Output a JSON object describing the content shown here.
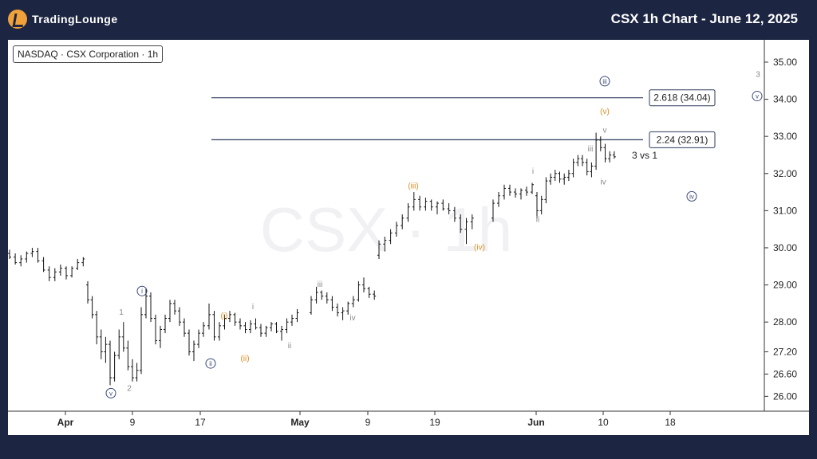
{
  "header": {
    "logo_text": "TradingLounge",
    "title": "CSX 1h Chart - June 12, 2025",
    "brand_color": "#1c2541",
    "logo_color": "#f0a13a"
  },
  "ticker_label": "NASDAQ · CSX Corporation · 1h",
  "watermark": "CSX · 1h",
  "chart_data": {
    "type": "bar",
    "subtype": "ohlc",
    "ylim": [
      25.6,
      35.6
    ],
    "y_ticks": [
      26.0,
      26.6,
      27.2,
      28.0,
      29.0,
      30.0,
      31.0,
      32.0,
      33.0,
      34.0,
      35.0
    ],
    "x_tick_labels": [
      "Apr",
      "9",
      "17",
      "May",
      "9",
      "19",
      "Jun",
      "10",
      "18"
    ],
    "grid": false,
    "fib_levels": [
      {
        "label": "2.618 (34.04)",
        "value": 34.04
      },
      {
        "label": "2.24 (32.91)",
        "value": 32.91
      }
    ],
    "annotation": "3 vs 1",
    "wave_labels": [
      {
        "text": "1",
        "color": "gray",
        "circled": false,
        "price": 28.2
      },
      {
        "text": "2",
        "color": "gray",
        "circled": false,
        "price": 26.15
      },
      {
        "text": "3",
        "color": "gray",
        "circled": false,
        "price": 34.6
      },
      {
        "text": "i",
        "color": "navy",
        "circled": true,
        "price": 28.75
      },
      {
        "text": "v",
        "color": "navy",
        "circled": true,
        "price": 26.0
      },
      {
        "text": "ii",
        "color": "navy",
        "circled": true,
        "price": 26.8
      },
      {
        "text": "iii",
        "color": "navy",
        "circled": true,
        "price": 34.4
      },
      {
        "text": "iv",
        "color": "navy",
        "circled": true,
        "price": 31.3
      },
      {
        "text": "v",
        "color": "navy",
        "circled": true,
        "price": 34.0
      },
      {
        "text": "(i)",
        "color": "orange",
        "circled": false,
        "price": 28.1
      },
      {
        "text": "(ii)",
        "color": "orange",
        "circled": false,
        "price": 26.95
      },
      {
        "text": "(iii)",
        "color": "orange",
        "circled": false,
        "price": 31.6
      },
      {
        "text": "(iv)",
        "color": "orange",
        "circled": false,
        "price": 29.95
      },
      {
        "text": "(v)",
        "color": "orange",
        "circled": false,
        "price": 33.6
      },
      {
        "text": "i",
        "color": "gray",
        "circled": false,
        "price": 28.35
      },
      {
        "text": "ii",
        "color": "gray",
        "circled": false,
        "price": 27.3
      },
      {
        "text": "iii",
        "color": "gray",
        "circled": false,
        "price": 28.95
      },
      {
        "text": "iv",
        "color": "gray",
        "circled": false,
        "price": 28.05
      },
      {
        "text": "i",
        "color": "gray",
        "circled": false,
        "price": 32.0
      },
      {
        "text": "ii",
        "color": "gray",
        "circled": false,
        "price": 30.7
      },
      {
        "text": "iii",
        "color": "gray",
        "circled": false,
        "price": 32.6
      },
      {
        "text": "iv",
        "color": "gray",
        "circled": false,
        "price": 31.7
      },
      {
        "text": "v",
        "color": "gray",
        "circled": false,
        "price": 33.1
      }
    ],
    "bars": [
      {
        "o": 29.85,
        "h": 29.95,
        "l": 29.7,
        "c": 29.75
      },
      {
        "o": 29.75,
        "h": 29.85,
        "l": 29.55,
        "c": 29.6
      },
      {
        "o": 29.6,
        "h": 29.8,
        "l": 29.5,
        "c": 29.7
      },
      {
        "o": 29.7,
        "h": 29.9,
        "l": 29.6,
        "c": 29.85
      },
      {
        "o": 29.85,
        "h": 30.0,
        "l": 29.75,
        "c": 29.9
      },
      {
        "o": 29.9,
        "h": 30.0,
        "l": 29.6,
        "c": 29.65
      },
      {
        "o": 29.65,
        "h": 29.75,
        "l": 29.35,
        "c": 29.4
      },
      {
        "o": 29.4,
        "h": 29.5,
        "l": 29.1,
        "c": 29.2
      },
      {
        "o": 29.2,
        "h": 29.45,
        "l": 29.1,
        "c": 29.35
      },
      {
        "o": 29.35,
        "h": 29.55,
        "l": 29.25,
        "c": 29.45
      },
      {
        "o": 29.45,
        "h": 29.5,
        "l": 29.15,
        "c": 29.25
      },
      {
        "o": 29.25,
        "h": 29.5,
        "l": 29.2,
        "c": 29.45
      },
      {
        "o": 29.45,
        "h": 29.7,
        "l": 29.4,
        "c": 29.6
      },
      {
        "o": 29.6,
        "h": 29.75,
        "l": 29.5,
        "c": 29.7
      },
      {
        "o": 29.0,
        "h": 29.1,
        "l": 28.5,
        "c": 28.6
      },
      {
        "o": 28.6,
        "h": 28.7,
        "l": 28.1,
        "c": 28.2
      },
      {
        "o": 28.2,
        "h": 28.3,
        "l": 27.4,
        "c": 27.6
      },
      {
        "o": 27.6,
        "h": 27.8,
        "l": 27.0,
        "c": 27.2
      },
      {
        "o": 27.2,
        "h": 27.6,
        "l": 26.9,
        "c": 27.4
      },
      {
        "o": 27.4,
        "h": 27.5,
        "l": 26.3,
        "c": 26.5
      },
      {
        "o": 26.5,
        "h": 27.2,
        "l": 26.4,
        "c": 27.1
      },
      {
        "o": 27.1,
        "h": 27.8,
        "l": 27.0,
        "c": 27.6
      },
      {
        "o": 27.6,
        "h": 28.0,
        "l": 27.2,
        "c": 27.3
      },
      {
        "o": 27.3,
        "h": 27.5,
        "l": 26.7,
        "c": 26.8
      },
      {
        "o": 26.8,
        "h": 27.0,
        "l": 26.4,
        "c": 26.5
      },
      {
        "o": 26.5,
        "h": 26.9,
        "l": 26.4,
        "c": 26.7
      },
      {
        "o": 26.7,
        "h": 28.4,
        "l": 26.6,
        "c": 28.2
      },
      {
        "o": 28.2,
        "h": 28.9,
        "l": 28.1,
        "c": 28.7
      },
      {
        "o": 28.7,
        "h": 28.8,
        "l": 28.0,
        "c": 28.1
      },
      {
        "o": 28.1,
        "h": 28.2,
        "l": 27.4,
        "c": 27.5
      },
      {
        "o": 27.5,
        "h": 27.9,
        "l": 27.3,
        "c": 27.8
      },
      {
        "o": 27.8,
        "h": 28.2,
        "l": 27.7,
        "c": 28.1
      },
      {
        "o": 28.1,
        "h": 28.6,
        "l": 28.0,
        "c": 28.5
      },
      {
        "o": 28.5,
        "h": 28.6,
        "l": 28.2,
        "c": 28.3
      },
      {
        "o": 28.3,
        "h": 28.4,
        "l": 27.9,
        "c": 28.0
      },
      {
        "o": 28.0,
        "h": 28.1,
        "l": 27.6,
        "c": 27.7
      },
      {
        "o": 27.7,
        "h": 27.8,
        "l": 27.1,
        "c": 27.2
      },
      {
        "o": 27.2,
        "h": 27.5,
        "l": 26.95,
        "c": 27.4
      },
      {
        "o": 27.4,
        "h": 27.8,
        "l": 27.3,
        "c": 27.7
      },
      {
        "o": 27.7,
        "h": 28.0,
        "l": 27.6,
        "c": 27.9
      },
      {
        "o": 27.9,
        "h": 28.5,
        "l": 27.8,
        "c": 28.2
      },
      {
        "o": 28.2,
        "h": 28.3,
        "l": 27.5,
        "c": 27.6
      },
      {
        "o": 27.6,
        "h": 28.0,
        "l": 27.5,
        "c": 27.9
      },
      {
        "o": 27.9,
        "h": 28.2,
        "l": 27.8,
        "c": 28.1
      },
      {
        "o": 28.1,
        "h": 28.3,
        "l": 28.0,
        "c": 28.2
      },
      {
        "o": 28.2,
        "h": 28.25,
        "l": 27.9,
        "c": 28.0
      },
      {
        "o": 28.0,
        "h": 28.1,
        "l": 27.8,
        "c": 27.9
      },
      {
        "o": 27.9,
        "h": 28.0,
        "l": 27.7,
        "c": 27.8
      },
      {
        "o": 27.8,
        "h": 28.05,
        "l": 27.7,
        "c": 27.95
      },
      {
        "o": 27.95,
        "h": 28.1,
        "l": 27.8,
        "c": 27.85
      },
      {
        "o": 27.85,
        "h": 27.95,
        "l": 27.6,
        "c": 27.7
      },
      {
        "o": 27.7,
        "h": 27.9,
        "l": 27.6,
        "c": 27.85
      },
      {
        "o": 27.85,
        "h": 28.0,
        "l": 27.75,
        "c": 27.95
      },
      {
        "o": 27.95,
        "h": 28.0,
        "l": 27.7,
        "c": 27.75
      },
      {
        "o": 27.75,
        "h": 27.9,
        "l": 27.5,
        "c": 27.8
      },
      {
        "o": 27.8,
        "h": 28.1,
        "l": 27.7,
        "c": 28.0
      },
      {
        "o": 28.0,
        "h": 28.2,
        "l": 27.9,
        "c": 28.1
      },
      {
        "o": 28.1,
        "h": 28.35,
        "l": 28.0,
        "c": 28.25
      },
      {
        "o": 28.25,
        "h": 28.7,
        "l": 28.2,
        "c": 28.6
      },
      {
        "o": 28.6,
        "h": 28.95,
        "l": 28.5,
        "c": 28.8
      },
      {
        "o": 28.8,
        "h": 28.85,
        "l": 28.6,
        "c": 28.7
      },
      {
        "o": 28.7,
        "h": 28.8,
        "l": 28.5,
        "c": 28.6
      },
      {
        "o": 28.6,
        "h": 28.7,
        "l": 28.3,
        "c": 28.4
      },
      {
        "o": 28.4,
        "h": 28.5,
        "l": 28.15,
        "c": 28.25
      },
      {
        "o": 28.25,
        "h": 28.4,
        "l": 28.05,
        "c": 28.3
      },
      {
        "o": 28.3,
        "h": 28.55,
        "l": 28.2,
        "c": 28.5
      },
      {
        "o": 28.5,
        "h": 28.7,
        "l": 28.4,
        "c": 28.6
      },
      {
        "o": 28.6,
        "h": 29.1,
        "l": 28.55,
        "c": 29.0
      },
      {
        "o": 29.0,
        "h": 29.2,
        "l": 28.8,
        "c": 28.9
      },
      {
        "o": 28.9,
        "h": 28.95,
        "l": 28.65,
        "c": 28.75
      },
      {
        "o": 28.75,
        "h": 28.85,
        "l": 28.6,
        "c": 28.7
      },
      {
        "o": 29.8,
        "h": 30.2,
        "l": 29.7,
        "c": 30.1
      },
      {
        "o": 30.1,
        "h": 30.3,
        "l": 29.9,
        "c": 30.2
      },
      {
        "o": 30.2,
        "h": 30.5,
        "l": 30.1,
        "c": 30.4
      },
      {
        "o": 30.4,
        "h": 30.7,
        "l": 30.3,
        "c": 30.6
      },
      {
        "o": 30.6,
        "h": 30.9,
        "l": 30.5,
        "c": 30.8
      },
      {
        "o": 30.8,
        "h": 31.2,
        "l": 30.7,
        "c": 31.1
      },
      {
        "o": 31.1,
        "h": 31.5,
        "l": 31.0,
        "c": 31.3
      },
      {
        "o": 31.3,
        "h": 31.4,
        "l": 31.0,
        "c": 31.1
      },
      {
        "o": 31.1,
        "h": 31.35,
        "l": 31.0,
        "c": 31.25
      },
      {
        "o": 31.25,
        "h": 31.3,
        "l": 31.0,
        "c": 31.1
      },
      {
        "o": 31.1,
        "h": 31.25,
        "l": 30.9,
        "c": 31.2
      },
      {
        "o": 31.2,
        "h": 31.3,
        "l": 31.0,
        "c": 31.05
      },
      {
        "o": 31.05,
        "h": 31.2,
        "l": 30.9,
        "c": 31.0
      },
      {
        "o": 31.0,
        "h": 31.1,
        "l": 30.7,
        "c": 30.8
      },
      {
        "o": 30.8,
        "h": 30.9,
        "l": 30.4,
        "c": 30.5
      },
      {
        "o": 30.5,
        "h": 30.8,
        "l": 30.1,
        "c": 30.7
      },
      {
        "o": 30.7,
        "h": 30.9,
        "l": 30.5,
        "c": 30.8
      },
      {
        "o": 30.8,
        "h": 31.3,
        "l": 30.7,
        "c": 31.2
      },
      {
        "o": 31.2,
        "h": 31.5,
        "l": 31.1,
        "c": 31.4
      },
      {
        "o": 31.4,
        "h": 31.7,
        "l": 31.3,
        "c": 31.6
      },
      {
        "o": 31.6,
        "h": 31.7,
        "l": 31.4,
        "c": 31.5
      },
      {
        "o": 31.5,
        "h": 31.6,
        "l": 31.35,
        "c": 31.45
      },
      {
        "o": 31.45,
        "h": 31.6,
        "l": 31.3,
        "c": 31.55
      },
      {
        "o": 31.55,
        "h": 31.65,
        "l": 31.4,
        "c": 31.5
      },
      {
        "o": 31.5,
        "h": 31.75,
        "l": 31.45,
        "c": 31.7
      },
      {
        "o": 31.4,
        "h": 31.5,
        "l": 30.8,
        "c": 31.0
      },
      {
        "o": 31.0,
        "h": 31.4,
        "l": 30.9,
        "c": 31.3
      },
      {
        "o": 31.3,
        "h": 31.9,
        "l": 31.2,
        "c": 31.8
      },
      {
        "o": 31.8,
        "h": 32.0,
        "l": 31.7,
        "c": 31.9
      },
      {
        "o": 31.9,
        "h": 32.1,
        "l": 31.8,
        "c": 32.0
      },
      {
        "o": 32.0,
        "h": 32.05,
        "l": 31.75,
        "c": 31.85
      },
      {
        "o": 31.85,
        "h": 32.0,
        "l": 31.7,
        "c": 31.9
      },
      {
        "o": 31.9,
        "h": 32.1,
        "l": 31.8,
        "c": 32.0
      },
      {
        "o": 32.0,
        "h": 32.4,
        "l": 31.9,
        "c": 32.3
      },
      {
        "o": 32.3,
        "h": 32.5,
        "l": 32.2,
        "c": 32.4
      },
      {
        "o": 32.4,
        "h": 32.5,
        "l": 32.2,
        "c": 32.3
      },
      {
        "o": 32.3,
        "h": 32.4,
        "l": 31.95,
        "c": 32.05
      },
      {
        "o": 32.05,
        "h": 32.3,
        "l": 31.9,
        "c": 32.2
      },
      {
        "o": 32.2,
        "h": 33.1,
        "l": 32.1,
        "c": 32.9
      },
      {
        "o": 32.9,
        "h": 33.0,
        "l": 32.6,
        "c": 32.7
      },
      {
        "o": 32.7,
        "h": 32.8,
        "l": 32.3,
        "c": 32.4
      },
      {
        "o": 32.4,
        "h": 32.6,
        "l": 32.3,
        "c": 32.5
      },
      {
        "o": 32.5,
        "h": 32.6,
        "l": 32.4,
        "c": 32.45
      }
    ]
  }
}
